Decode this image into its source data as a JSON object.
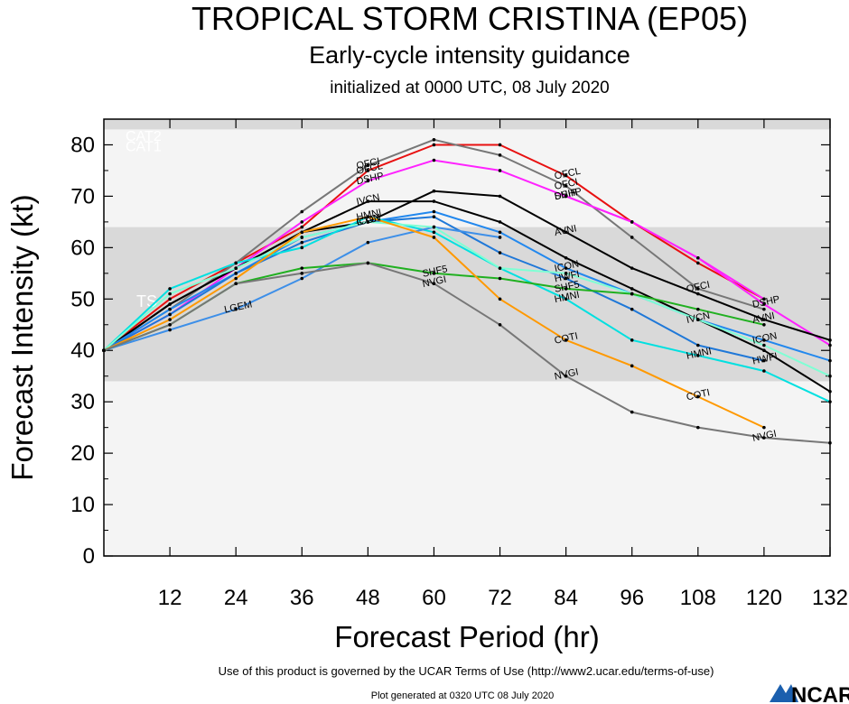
{
  "header": {
    "title": "TROPICAL STORM CRISTINA (EP05)",
    "subtitle": "Early-cycle intensity guidance",
    "init": "initialized at 0000 UTC, 08 July 2020"
  },
  "footer": {
    "terms": "Use of this product is governed by the UCAR Terms of Use (http://www2.ucar.edu/terms-of-use)",
    "generated": "Plot generated at 0320 UTC   08 July 2020",
    "logo": "NCAR"
  },
  "chart_data": {
    "type": "line",
    "title": "TROPICAL STORM CRISTINA (EP05)",
    "xlabel": "Forecast Period (hr)",
    "ylabel": "Forecast Intensity (kt)",
    "xlim": [
      0,
      132
    ],
    "ylim": [
      0,
      85
    ],
    "xticks": [
      12,
      24,
      36,
      48,
      60,
      72,
      84,
      96,
      108,
      120,
      132
    ],
    "yticks": [
      0,
      10,
      20,
      30,
      40,
      50,
      60,
      70,
      80
    ],
    "bands": [
      {
        "label": "TS",
        "from": 34,
        "to": 64,
        "color": "#d9d9d9"
      },
      {
        "label": "CAT1",
        "from": 64,
        "to": 83,
        "color": "#f4f4f4"
      },
      {
        "label": "CAT2",
        "from": 83,
        "to": 85,
        "color": "#d9d9d9"
      }
    ],
    "series": [
      {
        "name": "OFCL",
        "color": "#e81010",
        "label_at": [
          48,
          84
        ],
        "points": [
          [
            0,
            40
          ],
          [
            12,
            50
          ],
          [
            24,
            57
          ],
          [
            36,
            64
          ],
          [
            48,
            75
          ],
          [
            60,
            80
          ],
          [
            72,
            80
          ],
          [
            84,
            74
          ],
          [
            96,
            65
          ],
          [
            108,
            57
          ],
          [
            120,
            50
          ]
        ]
      },
      {
        "name": "OFCI",
        "color": "#777777",
        "label_at": [
          48,
          84,
          108
        ],
        "points": [
          [
            0,
            40
          ],
          [
            12,
            48
          ],
          [
            24,
            57
          ],
          [
            36,
            67
          ],
          [
            48,
            76
          ],
          [
            60,
            81
          ],
          [
            72,
            78
          ],
          [
            84,
            72
          ],
          [
            96,
            62
          ],
          [
            108,
            52
          ],
          [
            120,
            48
          ]
        ]
      },
      {
        "name": "DSHP",
        "color": "#ff22ff",
        "label_at": [
          48,
          84,
          120
        ],
        "points": [
          [
            0,
            40
          ],
          [
            12,
            47
          ],
          [
            24,
            56
          ],
          [
            36,
            65
          ],
          [
            48,
            73
          ],
          [
            60,
            77
          ],
          [
            72,
            75
          ],
          [
            84,
            70
          ],
          [
            96,
            65
          ],
          [
            108,
            58
          ],
          [
            120,
            49
          ],
          [
            132,
            41
          ]
        ]
      },
      {
        "name": "SHIP",
        "color": "#ff22ff",
        "label_at": [
          84
        ],
        "points": [
          [
            84,
            70
          ],
          [
            96,
            65
          ],
          [
            108,
            58
          ],
          [
            120,
            50
          ]
        ]
      },
      {
        "name": "IVCN",
        "color": "#000000",
        "label_at": [
          48,
          108
        ],
        "points": [
          [
            0,
            40
          ],
          [
            12,
            49
          ],
          [
            24,
            56
          ],
          [
            36,
            63
          ],
          [
            48,
            69
          ],
          [
            60,
            69
          ],
          [
            72,
            65
          ],
          [
            84,
            58
          ],
          [
            96,
            52
          ],
          [
            108,
            46
          ],
          [
            120,
            40
          ],
          [
            132,
            32
          ]
        ]
      },
      {
        "name": "AVNI",
        "color": "#000000",
        "label_at": [
          84,
          120
        ],
        "points": [
          [
            0,
            40
          ],
          [
            12,
            49
          ],
          [
            24,
            56
          ],
          [
            36,
            63
          ],
          [
            48,
            65
          ],
          [
            60,
            71
          ],
          [
            72,
            70
          ],
          [
            84,
            63
          ],
          [
            96,
            56
          ],
          [
            108,
            51
          ],
          [
            120,
            46
          ],
          [
            132,
            42
          ]
        ]
      },
      {
        "name": "ICON",
        "color": "#2288ee",
        "label_at": [
          48,
          84,
          120
        ],
        "points": [
          [
            0,
            40
          ],
          [
            12,
            48
          ],
          [
            24,
            55
          ],
          [
            36,
            62
          ],
          [
            48,
            65
          ],
          [
            60,
            67
          ],
          [
            72,
            63
          ],
          [
            84,
            56
          ],
          [
            96,
            51
          ],
          [
            108,
            46
          ],
          [
            120,
            42
          ],
          [
            132,
            38
          ]
        ]
      },
      {
        "name": "HWFI",
        "color": "#1f78d8",
        "label_at": [
          84,
          120
        ],
        "points": [
          [
            0,
            40
          ],
          [
            12,
            47
          ],
          [
            24,
            55
          ],
          [
            36,
            61
          ],
          [
            48,
            65
          ],
          [
            60,
            66
          ],
          [
            72,
            59
          ],
          [
            84,
            54
          ],
          [
            96,
            48
          ],
          [
            108,
            41
          ],
          [
            120,
            38
          ]
        ]
      },
      {
        "name": "HMNI",
        "color": "#00e0e0",
        "label_at": [
          48,
          84,
          108
        ],
        "points": [
          [
            0,
            40
          ],
          [
            12,
            52
          ],
          [
            24,
            57
          ],
          [
            36,
            60
          ],
          [
            48,
            66
          ],
          [
            60,
            63
          ],
          [
            72,
            56
          ],
          [
            84,
            50
          ],
          [
            96,
            42
          ],
          [
            108,
            39
          ],
          [
            120,
            36
          ],
          [
            132,
            30
          ]
        ]
      },
      {
        "name": "LGEM",
        "color": "#3d8fe8",
        "label_at": [
          24
        ],
        "points": [
          [
            0,
            40
          ],
          [
            12,
            44
          ],
          [
            24,
            48
          ],
          [
            36,
            54
          ],
          [
            48,
            61
          ],
          [
            60,
            64
          ],
          [
            72,
            62
          ]
        ]
      },
      {
        "name": "CTCI",
        "color": "#7fffd4",
        "label_at": [
          48
        ],
        "points": [
          [
            0,
            40
          ],
          [
            12,
            51
          ],
          [
            24,
            56
          ],
          [
            36,
            62
          ],
          [
            48,
            65
          ],
          [
            60,
            64
          ],
          [
            72,
            56
          ],
          [
            84,
            55
          ],
          [
            96,
            51
          ],
          [
            108,
            46
          ],
          [
            120,
            41
          ],
          [
            132,
            35
          ]
        ]
      },
      {
        "name": "SHF5",
        "color": "#20b020",
        "label_at": [
          60,
          84
        ],
        "points": [
          [
            0,
            40
          ],
          [
            12,
            45
          ],
          [
            24,
            53
          ],
          [
            36,
            56
          ],
          [
            48,
            57
          ],
          [
            60,
            55
          ],
          [
            72,
            54
          ],
          [
            84,
            52
          ],
          [
            96,
            51
          ],
          [
            108,
            48
          ],
          [
            120,
            45
          ]
        ]
      },
      {
        "name": "COTI",
        "color": "#ff9900",
        "label_at": [
          84,
          108
        ],
        "points": [
          [
            0,
            40
          ],
          [
            12,
            46
          ],
          [
            24,
            54
          ],
          [
            36,
            63
          ],
          [
            48,
            66
          ],
          [
            60,
            62
          ],
          [
            72,
            50
          ],
          [
            84,
            42
          ],
          [
            96,
            37
          ],
          [
            108,
            31
          ],
          [
            120,
            25
          ]
        ]
      },
      {
        "name": "NVGI",
        "color": "#777777",
        "label_at": [
          60,
          84,
          120
        ],
        "points": [
          [
            0,
            40
          ],
          [
            12,
            45
          ],
          [
            24,
            53
          ],
          [
            36,
            55
          ],
          [
            48,
            57
          ],
          [
            60,
            53
          ],
          [
            72,
            45
          ],
          [
            84,
            35
          ],
          [
            96,
            28
          ],
          [
            108,
            25
          ],
          [
            120,
            23
          ],
          [
            132,
            22
          ]
        ]
      }
    ]
  }
}
